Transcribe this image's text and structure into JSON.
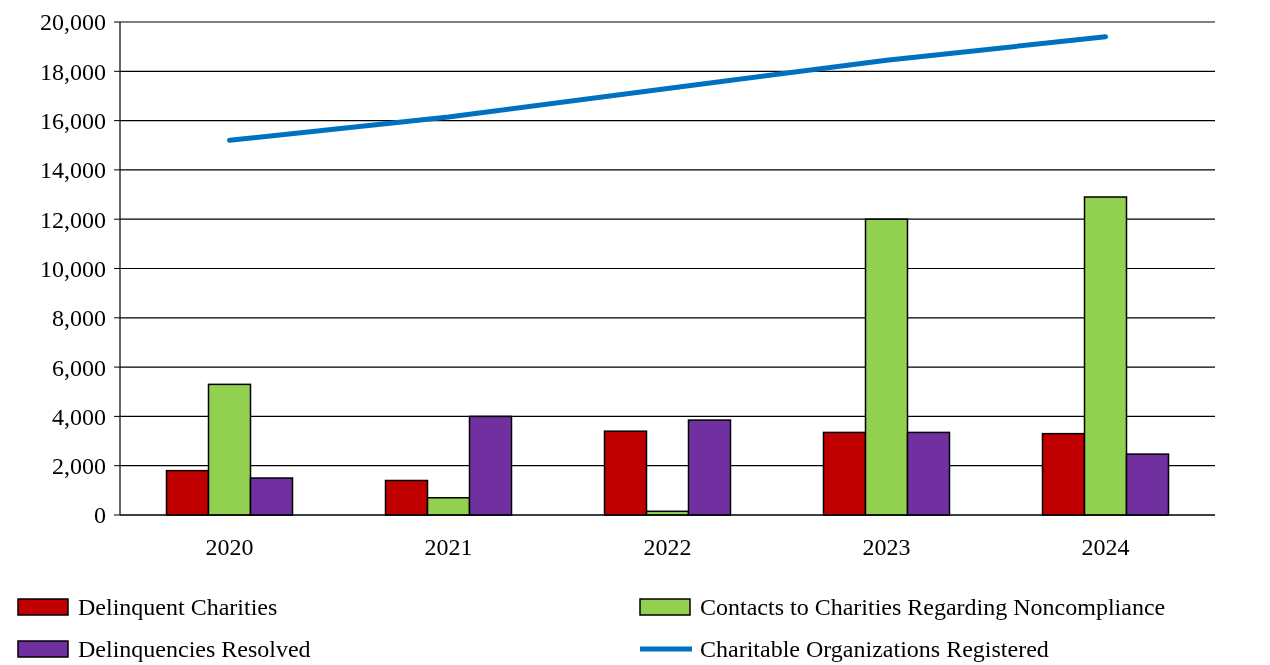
{
  "chart_data": {
    "type": "bar",
    "categories": [
      "2020",
      "2021",
      "2022",
      "2023",
      "2024"
    ],
    "series": [
      {
        "name": "Delinquent Charities",
        "color": "#c00000",
        "values": [
          1800,
          1400,
          3400,
          3350,
          3300
        ]
      },
      {
        "name": "Contacts to Charities Regarding Noncompliance",
        "color": "#92d050",
        "values": [
          5300,
          700,
          150,
          12000,
          12900
        ]
      },
      {
        "name": "Delinquencies Resolved",
        "color": "#7030a0",
        "values": [
          1500,
          4000,
          3850,
          3350,
          2470
        ]
      },
      {
        "name": "Charitable Organizations Registered",
        "color": "#0070c0",
        "type": "line",
        "values": [
          15200,
          16150,
          17300,
          18450,
          19400
        ]
      }
    ],
    "ylim": [
      0,
      20000
    ],
    "yticks": [
      {
        "value": 0,
        "label": "0"
      },
      {
        "value": 2000,
        "label": "2,000"
      },
      {
        "value": 4000,
        "label": "4,000"
      },
      {
        "value": 6000,
        "label": "6,000"
      },
      {
        "value": 8000,
        "label": "8,000"
      },
      {
        "value": 10000,
        "label": "10,000"
      },
      {
        "value": 12000,
        "label": "12,000"
      },
      {
        "value": 14000,
        "label": "14,000"
      },
      {
        "value": 16000,
        "label": "16,000"
      },
      {
        "value": 18000,
        "label": "18,000"
      },
      {
        "value": 20000,
        "label": "20,000"
      }
    ],
    "grid": "y",
    "legend": "bottom",
    "marker": "none"
  }
}
